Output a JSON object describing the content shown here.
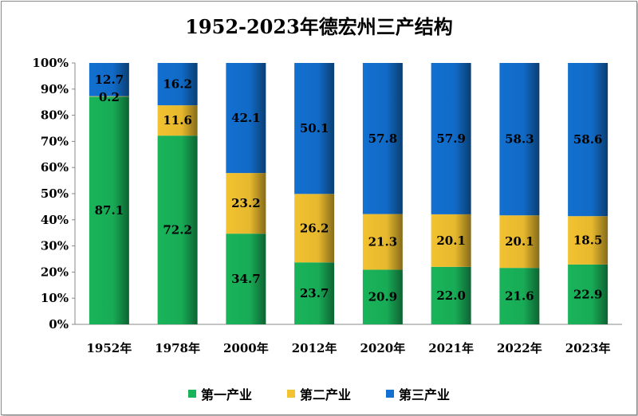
{
  "chart_data": {
    "type": "bar",
    "stacked": true,
    "title": "1952-2023年德宏州三产结构",
    "categories": [
      "1952年",
      "1978年",
      "2000年",
      "2012年",
      "2020年",
      "2021年",
      "2022年",
      "2023年"
    ],
    "series": [
      {
        "name": "第一产业",
        "color": "#19b45a",
        "values": [
          87.1,
          72.2,
          34.7,
          23.7,
          20.9,
          22.0,
          21.6,
          22.9
        ]
      },
      {
        "name": "第二产业",
        "color": "#f2c230",
        "values": [
          0.2,
          11.6,
          23.2,
          26.2,
          21.3,
          20.1,
          20.1,
          18.5
        ]
      },
      {
        "name": "第三产业",
        "color": "#1270d0",
        "values": [
          12.7,
          16.2,
          42.1,
          50.1,
          57.8,
          57.9,
          58.3,
          58.6
        ]
      }
    ],
    "labels": [
      [
        "87.1",
        "72.2",
        "34.7",
        "23.7",
        "20.9",
        "22.0",
        "21.6",
        "22.9"
      ],
      [
        "0.2",
        "11.6",
        "23.2",
        "26.2",
        "21.3",
        "20.1",
        "20.1",
        "18.5"
      ],
      [
        "12.7",
        "16.2",
        "42.1",
        "50.1",
        "57.8",
        "57.9",
        "58.3",
        "58.6"
      ]
    ],
    "y_ticks": [
      "0%",
      "10%",
      "20%",
      "30%",
      "40%",
      "50%",
      "60%",
      "70%",
      "80%",
      "90%",
      "100%"
    ],
    "ylim": [
      0,
      100
    ],
    "grid": false,
    "legend_position": "bottom"
  }
}
